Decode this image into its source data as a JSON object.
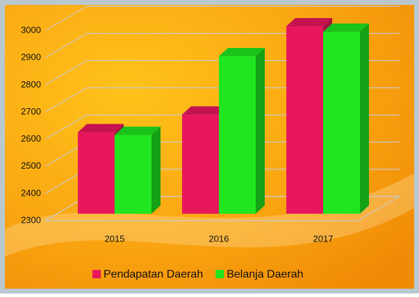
{
  "chart_data": {
    "type": "bar3d",
    "categories": [
      "2015",
      "2016",
      "2017"
    ],
    "series": [
      {
        "name": "Pendapatan Daerah",
        "color": "#e8175d",
        "values": [
          2600,
          2665,
          2990
        ]
      },
      {
        "name": "Belanja Daerah",
        "color": "#1fe61f",
        "values": [
          2590,
          2880,
          2970
        ]
      }
    ],
    "ylim": [
      2300,
      3100
    ],
    "yticks": [
      2300,
      2400,
      2500,
      2600,
      2700,
      2800,
      2900,
      3000
    ],
    "grid": true
  }
}
